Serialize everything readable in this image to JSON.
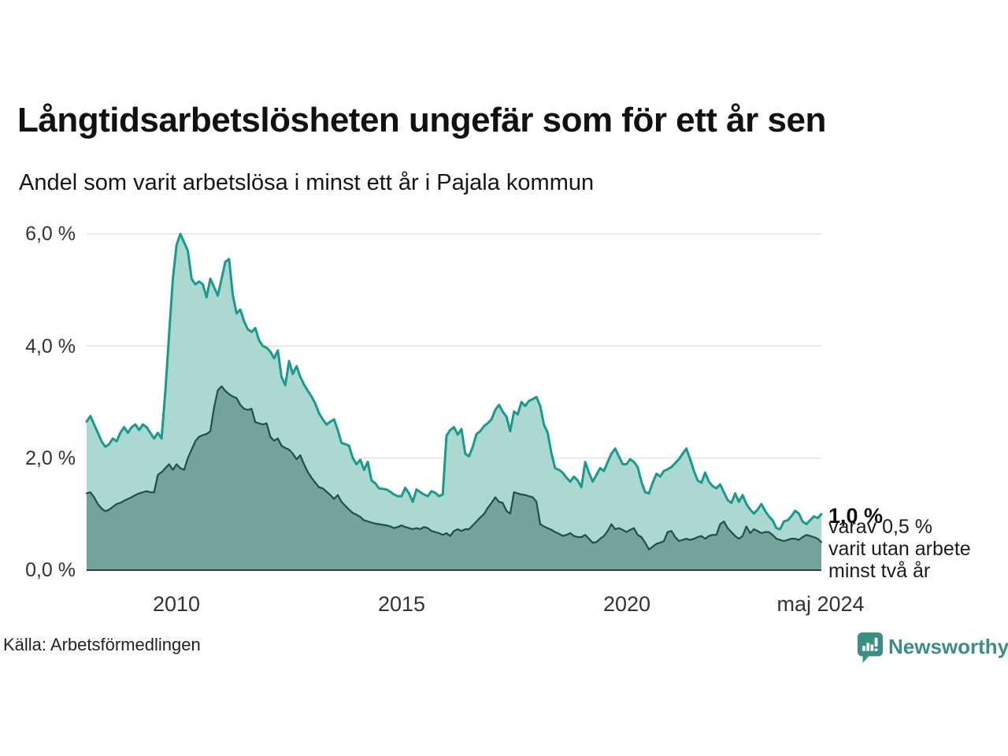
{
  "title": "Långtidsarbetslösheten ungefär som för ett år sen",
  "subtitle": "Andel som varit arbetslösa i minst ett år i Pajala kommun",
  "source": "Källa: Arbetsförmedlingen",
  "branding": {
    "name": "Newsworthy",
    "icon": "newsworthy-speech-bubble-bar-chart-icon"
  },
  "annotations": {
    "latest_total": "1,0 %",
    "latest_subset_line1": "varav 0,5 %",
    "latest_subset_line2": "varit utan arbete",
    "latest_subset_line3": "minst två år"
  },
  "colors": {
    "total_line": "#1a998c",
    "total_fill": "#abd8d1",
    "subset_line": "#1f4f49",
    "subset_fill": "#74a39c",
    "gridline": "#e3e3e3",
    "axis_line": "#383838",
    "brand_teal": "#3b8e85",
    "text_dark": "#111111"
  },
  "chart_data": {
    "type": "area",
    "title": "Långtidsarbetslösheten ungefär som för ett år sen",
    "subtitle": "Andel som varit arbetslösa i minst ett år i Pajala kommun",
    "x_start": "2008-01",
    "x_end": "2024-05",
    "frequency": "monthly",
    "ylim": [
      0,
      6
    ],
    "grid": true,
    "y_tick_labels": [
      "6,0 %",
      "4,0 %",
      "2,0 %",
      "0,0 %"
    ],
    "y_tick_values": [
      6,
      4,
      2,
      0
    ],
    "x_tick_labels": [
      "2010",
      "2015",
      "2020",
      "maj 2024"
    ],
    "series": [
      {
        "name": "Andel arbetslösa minst ett år",
        "latest_value_label": "1,0 %",
        "values": [
          2.65,
          2.75,
          2.6,
          2.45,
          2.3,
          2.2,
          2.25,
          2.35,
          2.3,
          2.45,
          2.55,
          2.45,
          2.55,
          2.6,
          2.5,
          2.6,
          2.55,
          2.45,
          2.35,
          2.45,
          2.35,
          3.2,
          4.2,
          5.2,
          5.8,
          6.0,
          5.85,
          5.7,
          5.2,
          5.1,
          5.15,
          5.1,
          4.87,
          5.2,
          5.05,
          4.9,
          5.2,
          5.5,
          5.55,
          4.91,
          4.58,
          4.65,
          4.44,
          4.3,
          4.25,
          4.32,
          4.1,
          4.0,
          3.97,
          3.9,
          3.78,
          3.92,
          3.45,
          3.3,
          3.73,
          3.5,
          3.64,
          3.45,
          3.31,
          3.2,
          3.1,
          2.97,
          2.8,
          2.69,
          2.6,
          2.65,
          2.69,
          2.5,
          2.27,
          2.25,
          2.22,
          2.0,
          1.89,
          1.97,
          1.79,
          1.93,
          1.6,
          1.55,
          1.46,
          1.45,
          1.44,
          1.4,
          1.35,
          1.32,
          1.32,
          1.47,
          1.37,
          1.22,
          1.44,
          1.39,
          1.35,
          1.32,
          1.41,
          1.38,
          1.32,
          1.35,
          2.4,
          2.5,
          2.55,
          2.42,
          2.52,
          2.08,
          2.03,
          2.2,
          2.43,
          2.48,
          2.57,
          2.62,
          2.69,
          2.86,
          2.95,
          2.83,
          2.74,
          2.48,
          2.83,
          2.78,
          3.0,
          2.93,
          3.02,
          3.05,
          3.09,
          2.93,
          2.6,
          2.45,
          2.08,
          1.82,
          1.79,
          1.74,
          1.65,
          1.58,
          1.67,
          1.6,
          1.48,
          1.93,
          1.74,
          1.58,
          1.7,
          1.82,
          1.77,
          1.93,
          2.08,
          2.17,
          2.03,
          1.89,
          1.89,
          1.98,
          1.93,
          1.84,
          1.58,
          1.39,
          1.37,
          1.56,
          1.72,
          1.67,
          1.77,
          1.8,
          1.84,
          1.91,
          1.98,
          2.08,
          2.17,
          1.98,
          1.77,
          1.6,
          1.56,
          1.74,
          1.58,
          1.5,
          1.46,
          1.53,
          1.39,
          1.25,
          1.2,
          1.37,
          1.22,
          1.34,
          1.18,
          1.08,
          1.01,
          1.08,
          1.18,
          1.06,
          0.96,
          0.89,
          0.75,
          0.73,
          0.87,
          0.89,
          0.96,
          1.06,
          1.01,
          0.87,
          0.82,
          0.89,
          0.96,
          0.93,
          1.0
        ]
      },
      {
        "name": "Varav arbetslösa minst två år",
        "latest_value_label": "0,5 %",
        "values": [
          1.37,
          1.39,
          1.3,
          1.18,
          1.1,
          1.05,
          1.08,
          1.13,
          1.18,
          1.2,
          1.24,
          1.27,
          1.3,
          1.34,
          1.37,
          1.39,
          1.41,
          1.39,
          1.39,
          1.7,
          1.75,
          1.82,
          1.89,
          1.79,
          1.89,
          1.82,
          1.79,
          2.0,
          2.15,
          2.3,
          2.38,
          2.41,
          2.43,
          2.48,
          2.9,
          3.21,
          3.28,
          3.2,
          3.14,
          3.1,
          3.07,
          2.95,
          2.88,
          2.86,
          2.88,
          2.64,
          2.62,
          2.6,
          2.62,
          2.38,
          2.31,
          2.35,
          2.22,
          2.18,
          2.15,
          2.08,
          1.98,
          2.05,
          1.89,
          1.75,
          1.65,
          1.56,
          1.48,
          1.46,
          1.4,
          1.34,
          1.27,
          1.34,
          1.22,
          1.15,
          1.08,
          1.02,
          0.99,
          0.95,
          0.89,
          0.87,
          0.85,
          0.83,
          0.82,
          0.81,
          0.8,
          0.78,
          0.75,
          0.77,
          0.8,
          0.77,
          0.75,
          0.73,
          0.75,
          0.73,
          0.77,
          0.75,
          0.7,
          0.68,
          0.66,
          0.63,
          0.66,
          0.61,
          0.7,
          0.73,
          0.7,
          0.73,
          0.73,
          0.8,
          0.87,
          0.94,
          1.0,
          1.11,
          1.2,
          1.3,
          1.22,
          1.2,
          1.06,
          1.01,
          1.39,
          1.37,
          1.35,
          1.34,
          1.32,
          1.3,
          1.22,
          0.82,
          0.78,
          0.75,
          0.72,
          0.68,
          0.65,
          0.61,
          0.63,
          0.66,
          0.61,
          0.59,
          0.59,
          0.63,
          0.56,
          0.49,
          0.5,
          0.56,
          0.61,
          0.7,
          0.82,
          0.73,
          0.75,
          0.72,
          0.68,
          0.72,
          0.75,
          0.63,
          0.59,
          0.49,
          0.37,
          0.42,
          0.47,
          0.49,
          0.52,
          0.68,
          0.7,
          0.59,
          0.52,
          0.54,
          0.56,
          0.54,
          0.56,
          0.59,
          0.61,
          0.56,
          0.61,
          0.63,
          0.63,
          0.82,
          0.87,
          0.75,
          0.68,
          0.61,
          0.56,
          0.61,
          0.78,
          0.66,
          0.73,
          0.7,
          0.66,
          0.68,
          0.68,
          0.63,
          0.56,
          0.54,
          0.52,
          0.54,
          0.56,
          0.56,
          0.54,
          0.59,
          0.63,
          0.61,
          0.59,
          0.56,
          0.5
        ]
      }
    ]
  }
}
